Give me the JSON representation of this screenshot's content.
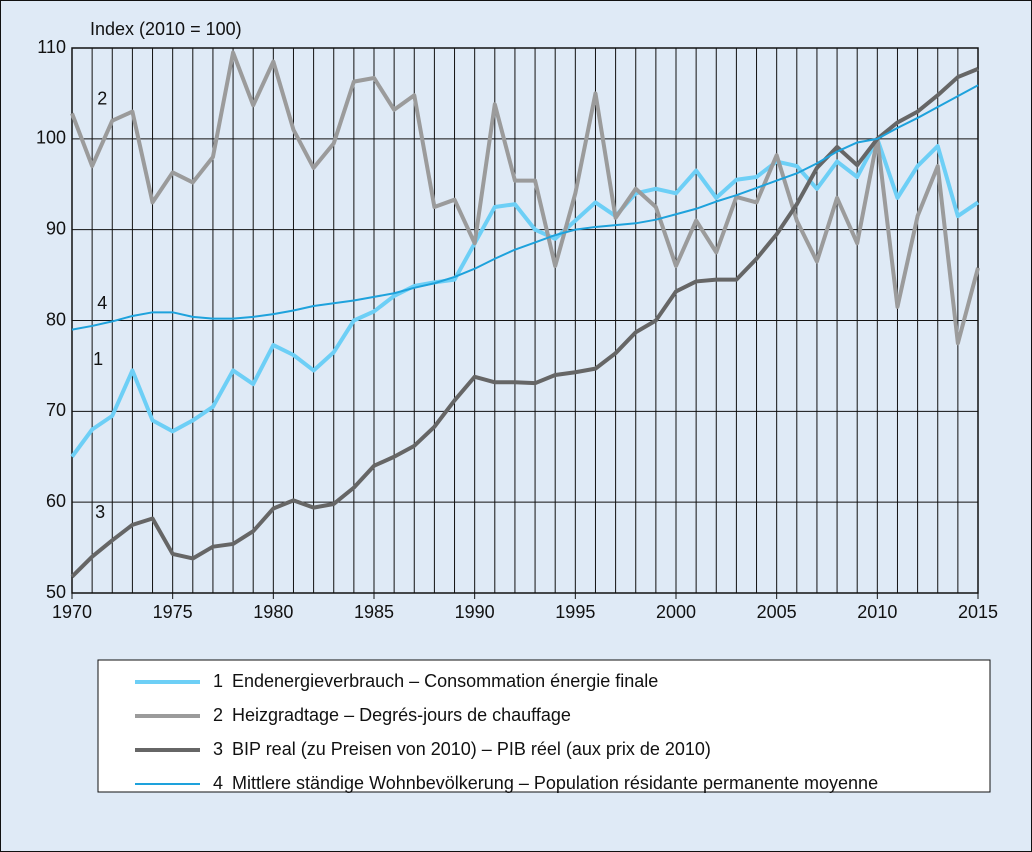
{
  "chart_data": {
    "type": "line",
    "y_label": "Index (2010 = 100)",
    "x": [
      1970,
      1971,
      1972,
      1973,
      1974,
      1975,
      1976,
      1977,
      1978,
      1979,
      1980,
      1981,
      1982,
      1983,
      1984,
      1985,
      1986,
      1987,
      1988,
      1989,
      1990,
      1991,
      1992,
      1993,
      1994,
      1995,
      1996,
      1997,
      1998,
      1999,
      2000,
      2001,
      2002,
      2003,
      2004,
      2005,
      2006,
      2007,
      2008,
      2009,
      2010,
      2011,
      2012,
      2013,
      2014,
      2015
    ],
    "xlim": [
      1970,
      2015
    ],
    "xticks": [
      1970,
      1975,
      1980,
      1985,
      1990,
      1995,
      2000,
      2005,
      2010,
      2015
    ],
    "ylim": [
      50,
      110
    ],
    "yticks": [
      50,
      60,
      70,
      80,
      90,
      100,
      110
    ],
    "grid": true,
    "series": [
      {
        "label": "1",
        "name": "Endenergieverbrauch – Consommation énergie finale",
        "color": "#6dcff6",
        "width": 4,
        "values": [
          65,
          68,
          69.5,
          74.5,
          69,
          67.8,
          69,
          70.5,
          74.5,
          73,
          77.3,
          76.2,
          74.5,
          76.5,
          80,
          81,
          82.7,
          83.8,
          84.2,
          84.5,
          88.5,
          92.5,
          92.8,
          90,
          89,
          91,
          93,
          91.5,
          94,
          94.5,
          94,
          96.5,
          93.5,
          95.5,
          95.8,
          97.5,
          97,
          94.5,
          97.5,
          95.8,
          100,
          93.5,
          97,
          99.2,
          91.5,
          93
        ]
      },
      {
        "label": "2",
        "name": "Heizgradtage – Degrés-jours de chauffage",
        "color": "#9b9b9b",
        "width": 4,
        "values": [
          102.8,
          97,
          102,
          103,
          93,
          96.3,
          95.2,
          98,
          109.5,
          103.7,
          108.5,
          101,
          96.8,
          99.5,
          106.3,
          106.7,
          103.2,
          104.8,
          92.5,
          93.3,
          88.5,
          103.8,
          95.4,
          95.4,
          86,
          94,
          105,
          91.3,
          94.5,
          92.5,
          86,
          91,
          87.5,
          93.6,
          93,
          98.2,
          91,
          86.5,
          93.5,
          88.5,
          100,
          81.5,
          91.5,
          97,
          77.5,
          85.8
        ]
      },
      {
        "label": "3",
        "name": "BIP real (zu Preisen von 2010) – PIB réel (aux prix de 2010)",
        "color": "#666666",
        "width": 4,
        "values": [
          51.8,
          54,
          55.8,
          57.5,
          58.2,
          54.3,
          53.8,
          55.1,
          55.4,
          56.8,
          59.3,
          60.2,
          59.4,
          59.8,
          61.6,
          64,
          65,
          66.2,
          68.3,
          71.2,
          73.8,
          73.2,
          73.2,
          73.1,
          74,
          74.3,
          74.7,
          76.4,
          78.7,
          80,
          83.2,
          84.3,
          84.5,
          84.5,
          86.8,
          89.5,
          92.8,
          96.8,
          99.1,
          97.1,
          100,
          101.8,
          103,
          104.8,
          106.8,
          107.7
        ]
      },
      {
        "label": "4",
        "name": "Mittlere ständige Wohnbevölkerung – Population résidante permanente moyenne",
        "color": "#1ea2dc",
        "width": 2,
        "values": [
          79,
          79.4,
          79.9,
          80.5,
          80.9,
          80.9,
          80.4,
          80.2,
          80.2,
          80.4,
          80.7,
          81.1,
          81.6,
          81.9,
          82.2,
          82.6,
          83,
          83.6,
          84.1,
          84.8,
          85.7,
          86.8,
          87.8,
          88.6,
          89.4,
          90,
          90.3,
          90.5,
          90.7,
          91.1,
          91.7,
          92.3,
          93.1,
          93.8,
          94.6,
          95.4,
          96.2,
          97.3,
          98.6,
          99.6,
          100,
          101.2,
          102.3,
          103.5,
          104.7,
          105.9
        ]
      }
    ]
  }
}
